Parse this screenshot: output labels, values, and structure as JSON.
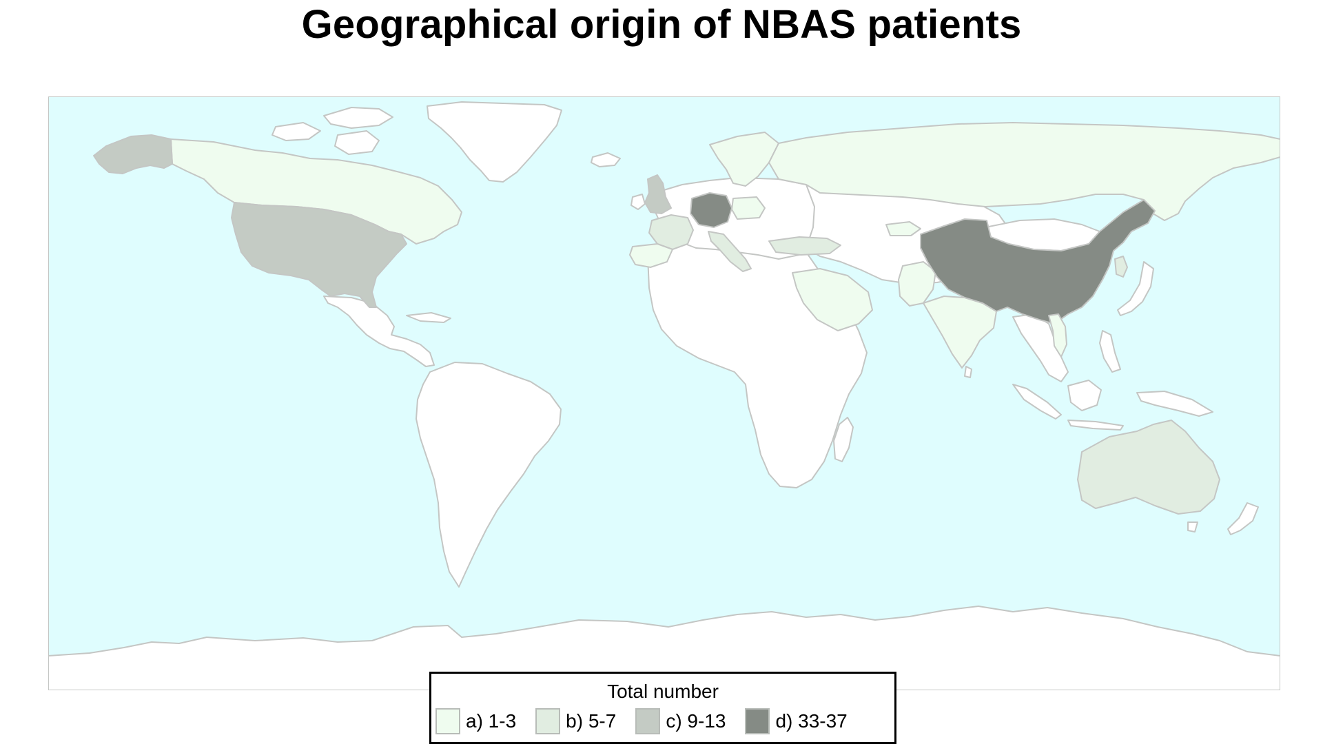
{
  "title": "Geographical origin of NBAS patients",
  "colors": {
    "ocean": "#dffdfe",
    "land_default": "#ffffff",
    "border": "#c4c6c4",
    "class_a": "#effcef",
    "class_b": "#e1ede1",
    "class_c": "#c4cbc4",
    "class_d": "#858b85"
  },
  "legend": {
    "title": "Total number",
    "items": [
      {
        "label": "a) 1-3",
        "class": "a",
        "color": "#effcef"
      },
      {
        "label": "b) 5-7",
        "class": "b",
        "color": "#e1ede1"
      },
      {
        "label": "c) 9-13",
        "class": "c",
        "color": "#c4cbc4"
      },
      {
        "label": "d) 33-37",
        "class": "d",
        "color": "#858b85"
      }
    ]
  },
  "map_data": {
    "type": "choropleth",
    "regions": [
      {
        "name": "Germany",
        "class": "d"
      },
      {
        "name": "China",
        "class": "d"
      },
      {
        "name": "United States",
        "class": "c"
      },
      {
        "name": "Alaska",
        "class": "c"
      },
      {
        "name": "United Kingdom",
        "class": "c"
      },
      {
        "name": "France",
        "class": "b"
      },
      {
        "name": "Italy",
        "class": "b"
      },
      {
        "name": "Turkey",
        "class": "b"
      },
      {
        "name": "Australia",
        "class": "b"
      },
      {
        "name": "South Korea",
        "class": "b"
      },
      {
        "name": "Canada",
        "class": "a"
      },
      {
        "name": "Russia",
        "class": "a"
      },
      {
        "name": "Spain",
        "class": "a"
      },
      {
        "name": "Poland",
        "class": "a"
      },
      {
        "name": "Saudi Arabia",
        "class": "a"
      },
      {
        "name": "India",
        "class": "a"
      },
      {
        "name": "Pakistan",
        "class": "a"
      },
      {
        "name": "Kyrgyzstan",
        "class": "a"
      },
      {
        "name": "Vietnam",
        "class": "a"
      },
      {
        "name": "Scandinavia",
        "class": "a"
      }
    ]
  }
}
